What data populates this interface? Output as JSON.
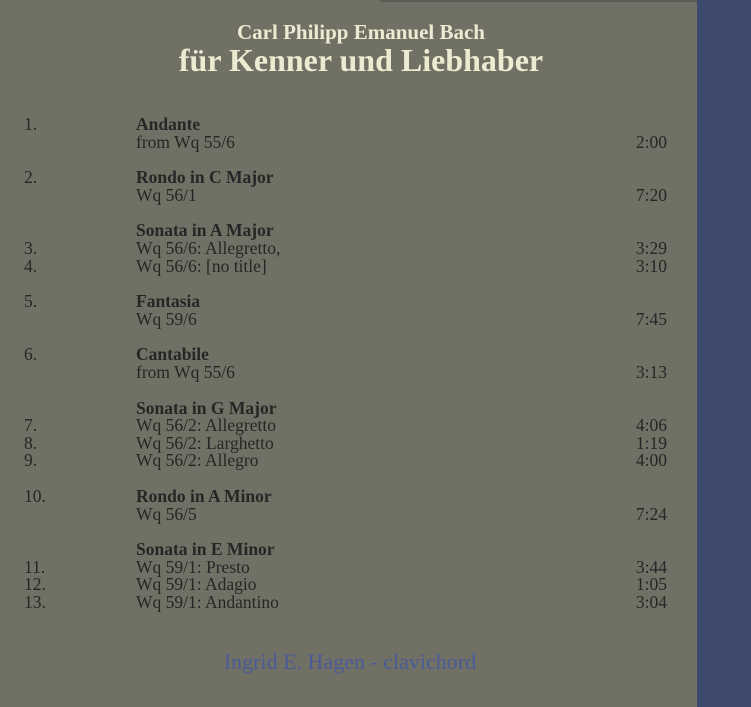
{
  "header": {
    "composer": "Carl Philipp Emanuel Bach",
    "title": "für Kenner und Liebhaber"
  },
  "groups": [
    {
      "title": "Andante",
      "tracks": [
        {
          "num": "1.",
          "sub": "from Wq 55/6",
          "time": "2:00"
        }
      ]
    },
    {
      "title": "Rondo in C Major",
      "tracks": [
        {
          "num": "2.",
          "sub": "Wq 56/1",
          "time": "7:20"
        }
      ]
    },
    {
      "title": "Sonata in A Major",
      "tracks": [
        {
          "num": "3.",
          "sub": "Wq 56/6: Allegretto,",
          "time": "3:29"
        },
        {
          "num": "4.",
          "sub": "Wq 56/6: [no title]",
          "time": "3:10"
        }
      ]
    },
    {
      "title": "Fantasia",
      "tracks": [
        {
          "num": "5.",
          "sub": "Wq 59/6",
          "time": "7:45"
        }
      ]
    },
    {
      "title": "Cantabile",
      "tracks": [
        {
          "num": "6.",
          "sub": "from Wq 55/6",
          "time": "3:13"
        }
      ]
    },
    {
      "title": "Sonata in G Major",
      "tracks": [
        {
          "num": "7.",
          "sub": "Wq 56/2: Allegretto",
          "time": "4:06"
        },
        {
          "num": "8.",
          "sub": "Wq 56/2: Larghetto",
          "time": "1:19"
        },
        {
          "num": "9.",
          "sub": "Wq 56/2: Allegro",
          "time": "4:00"
        }
      ]
    },
    {
      "title": "Rondo in A Minor",
      "tracks": [
        {
          "num": "10.",
          "sub": "Wq 56/5",
          "time": "7:24"
        }
      ]
    },
    {
      "title": "Sonata in E Minor",
      "tracks": [
        {
          "num": "11.",
          "sub": "Wq 59/1: Presto",
          "time": "3:44"
        },
        {
          "num": "12.",
          "sub": "Wq 59/1: Adagio",
          "time": "1:05"
        },
        {
          "num": "13.",
          "sub": "Wq 59/1: Andantino",
          "time": "3:04"
        }
      ]
    }
  ],
  "footer": {
    "performer": "Ingrid E. Hagen - clavichord"
  },
  "colors": {
    "background": "#707065",
    "sidebar": "#3d4a6e",
    "title": "#ecebd2",
    "performer": "#4b5a97"
  }
}
